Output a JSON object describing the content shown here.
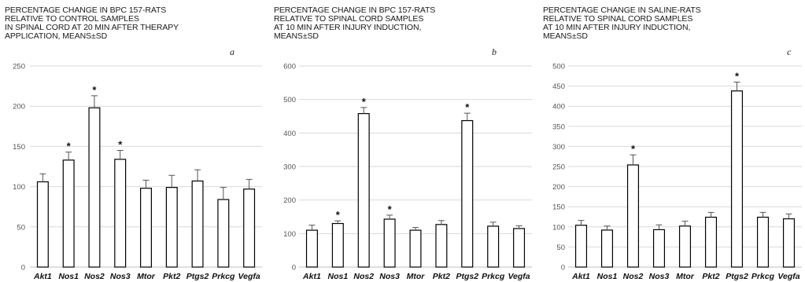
{
  "chart_data": [
    {
      "type": "bar",
      "title": [
        "PERCENTAGE CHANGE IN BPC 157-RATS",
        "RELATIVE TO CONTROL SAMPLES",
        "IN SPINAL CORD  AT 20 MIN AFTER THERAPY",
        "APPLICATION, MEANS±SD"
      ],
      "panel_label": "a",
      "categories": [
        "Akt1",
        "Nos1",
        "Nos2",
        "Nos3",
        "Mtor",
        "Pkt2",
        "Ptgs2",
        "Prkcg",
        "Vegfa"
      ],
      "values": [
        106,
        133,
        198,
        134,
        98,
        99,
        107,
        84,
        97
      ],
      "errors": [
        10,
        10,
        15,
        11,
        10,
        15,
        14,
        15,
        12
      ],
      "significant": [
        false,
        true,
        true,
        true,
        false,
        false,
        false,
        false,
        false
      ],
      "ylim": [
        0,
        250
      ],
      "yticks": [
        0,
        50,
        100,
        150,
        200,
        250
      ],
      "grid": true
    },
    {
      "type": "bar",
      "title": [
        "PERCENTAGE CHANGE IN BPC 157-RATS",
        "RELATIVE TO SPINAL CORD SAMPLES",
        "AT 10 MIN AFTER INJURY INDUCTION,",
        "MEANS±SD"
      ],
      "panel_label": "b",
      "categories": [
        "Akt1",
        "Nos1",
        "Nos2",
        "Nos3",
        "Mtor",
        "Pkt2",
        "Ptgs2",
        "Prkcg",
        "Vegfa"
      ],
      "values": [
        110,
        130,
        458,
        143,
        110,
        127,
        437,
        122,
        115
      ],
      "errors": [
        15,
        8,
        18,
        12,
        8,
        12,
        22,
        12,
        8
      ],
      "significant": [
        false,
        true,
        true,
        true,
        false,
        false,
        true,
        false,
        false
      ],
      "ylim": [
        0,
        600
      ],
      "yticks": [
        0,
        100,
        200,
        300,
        400,
        500,
        600
      ],
      "grid": true
    },
    {
      "type": "bar",
      "title": [
        "PERCENTAGE CHANGE IN SALINE-RATS",
        "RELATIVE TO SPINAL CORD SAMPLES",
        "AT 10 MIN AFTER INJURY INDUCTION,",
        "MEANS±SD"
      ],
      "panel_label": "c",
      "categories": [
        "Akt1",
        "Nos1",
        "Nos2",
        "Nos3",
        "Mtor",
        "Pkt2",
        "Ptgs2",
        "Prkcg",
        "Vegfa"
      ],
      "values": [
        104,
        92,
        254,
        93,
        102,
        124,
        438,
        124,
        120
      ],
      "errors": [
        12,
        10,
        25,
        12,
        12,
        12,
        22,
        12,
        12
      ],
      "significant": [
        false,
        false,
        true,
        false,
        false,
        false,
        true,
        false,
        false
      ],
      "ylim": [
        0,
        500
      ],
      "yticks": [
        0,
        50,
        100,
        150,
        200,
        250,
        300,
        350,
        400,
        450,
        500
      ],
      "grid": true
    }
  ]
}
